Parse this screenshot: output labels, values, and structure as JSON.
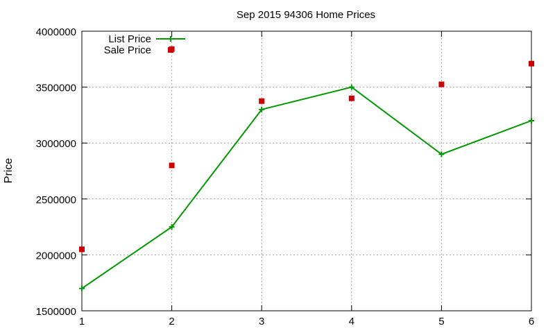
{
  "chart_data": {
    "type": "line",
    "title": "Sep 2015 94306 Home Prices",
    "xlabel": "",
    "ylabel": "Price",
    "xlim": [
      1,
      6
    ],
    "ylim": [
      1500000,
      4000000
    ],
    "x_ticks": [
      1,
      2,
      3,
      4,
      5,
      6
    ],
    "y_ticks": [
      1500000,
      2000000,
      2500000,
      3000000,
      3500000,
      4000000
    ],
    "grid": true,
    "legend_position": "top-left",
    "series": [
      {
        "name": "List Price",
        "type": "line",
        "marker": "plus",
        "color": "#009900",
        "points": [
          {
            "x": 1,
            "y": 1700000
          },
          {
            "x": 2,
            "y": 2250000
          },
          {
            "x": 3,
            "y": 3300000
          },
          {
            "x": 4,
            "y": 3500000
          },
          {
            "x": 5,
            "y": 2900000
          },
          {
            "x": 6,
            "y": 3200000
          }
        ]
      },
      {
        "name": "Sale Price",
        "type": "scatter",
        "marker": "square",
        "color": "#cc0000",
        "points": [
          {
            "x": 1,
            "y": 2050000
          },
          {
            "x": 2,
            "y": 2800000
          },
          {
            "x": 2,
            "y": 3840000
          },
          {
            "x": 3,
            "y": 3375000
          },
          {
            "x": 4,
            "y": 3400000
          },
          {
            "x": 5,
            "y": 3525000
          },
          {
            "x": 6,
            "y": 3710000
          }
        ]
      }
    ]
  }
}
